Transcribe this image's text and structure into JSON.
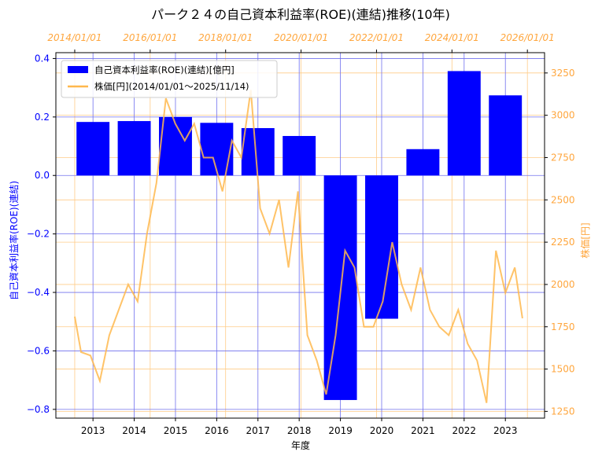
{
  "chart_data": {
    "type": "bar",
    "title": "パーク２４の自己資本利益率(ROE)(連結)推移(10年)",
    "xlabel": "年度",
    "ylabel": "自己資本利益率(ROE)(連結)",
    "ylabel_right": "株価[円]",
    "categories": [
      "2013",
      "2014",
      "2015",
      "2016",
      "2017",
      "2018",
      "2019",
      "2020",
      "2021",
      "2022",
      "2023"
    ],
    "series": [
      {
        "name": "自己資本利益率(ROE)(連結)[億円]",
        "type": "bar",
        "axis": "left",
        "color": "#0000ff",
        "values": [
          0.183,
          0.186,
          0.2,
          0.18,
          0.162,
          0.135,
          -0.768,
          -0.49,
          0.09,
          0.357,
          0.274
        ]
      },
      {
        "name": "株価[円](2014/01/01～2025/11/14)",
        "type": "line",
        "axis": "right",
        "color": "#ffb84d",
        "points": [
          [
            "2014/01/01",
            1810
          ],
          [
            "2014/03/01",
            1600
          ],
          [
            "2014/06/01",
            1580
          ],
          [
            "2014/09/01",
            1430
          ],
          [
            "2014/12/01",
            1700
          ],
          [
            "2015/03/01",
            1850
          ],
          [
            "2015/06/01",
            2000
          ],
          [
            "2015/09/01",
            1900
          ],
          [
            "2015/12/01",
            2300
          ],
          [
            "2016/03/01",
            2600
          ],
          [
            "2016/06/01",
            3100
          ],
          [
            "2016/09/01",
            2950
          ],
          [
            "2016/12/01",
            2850
          ],
          [
            "2017/03/01",
            2950
          ],
          [
            "2017/06/01",
            2750
          ],
          [
            "2017/09/01",
            2750
          ],
          [
            "2017/12/01",
            2550
          ],
          [
            "2018/03/01",
            2850
          ],
          [
            "2018/06/01",
            2750
          ],
          [
            "2018/09/01",
            3150
          ],
          [
            "2018/12/01",
            2450
          ],
          [
            "2019/03/01",
            2300
          ],
          [
            "2019/06/01",
            2500
          ],
          [
            "2019/09/01",
            2100
          ],
          [
            "2019/12/01",
            2550
          ],
          [
            "2020/03/01",
            1700
          ],
          [
            "2020/06/01",
            1550
          ],
          [
            "2020/09/01",
            1350
          ],
          [
            "2020/12/01",
            1700
          ],
          [
            "2021/03/01",
            2200
          ],
          [
            "2021/06/01",
            2100
          ],
          [
            "2021/09/01",
            1750
          ],
          [
            "2021/12/01",
            1750
          ],
          [
            "2022/03/01",
            1900
          ],
          [
            "2022/06/01",
            2250
          ],
          [
            "2022/09/01",
            2000
          ],
          [
            "2022/12/01",
            1850
          ],
          [
            "2023/03/01",
            2100
          ],
          [
            "2023/06/01",
            1850
          ],
          [
            "2023/09/01",
            1750
          ],
          [
            "2023/12/01",
            1700
          ],
          [
            "2024/03/01",
            1850
          ],
          [
            "2024/06/01",
            1650
          ],
          [
            "2024/09/01",
            1550
          ],
          [
            "2024/12/01",
            1300
          ],
          [
            "2025/03/01",
            2200
          ],
          [
            "2025/06/01",
            1950
          ],
          [
            "2025/09/01",
            2100
          ],
          [
            "2025/11/14",
            1800
          ]
        ]
      }
    ],
    "y_left": {
      "lim": [
        -0.83,
        0.42
      ],
      "ticks": [
        0.4,
        0.2,
        0.0,
        -0.2,
        -0.4,
        -0.6,
        -0.8
      ],
      "tick_labels": [
        "0.4",
        "0.2",
        "0.0",
        "−0.2",
        "−0.4",
        "−0.6",
        "−0.8"
      ],
      "color": "#0000ff"
    },
    "y_right": {
      "lim": [
        1210,
        3370
      ],
      "ticks": [
        3250,
        3000,
        2750,
        2500,
        2250,
        2000,
        1750,
        1500,
        1250
      ],
      "tick_labels": [
        "3250",
        "3000",
        "2750",
        "2500",
        "2250",
        "2000",
        "1750",
        "1500",
        "1250"
      ],
      "color": "#ffa63d"
    },
    "x_bottom": {
      "lim": [
        2012.1,
        2023.95
      ]
    },
    "x_top": {
      "ticks": [
        "2014/01/01",
        "2016/01/01",
        "2018/01/01",
        "2020/01/01",
        "2022/01/01",
        "2024/01/01",
        "2026/01/01"
      ],
      "tick_labels": [
        "2014/01/01",
        "2016/01/01",
        "2018/01/01",
        "2020/01/01",
        "2022/01/01",
        "2024/01/01",
        "2026/01/01"
      ],
      "date_lim": [
        "2013/07/01",
        "2026/06/15"
      ],
      "color": "#ffa63d"
    },
    "grid": true,
    "legend": "top-left"
  }
}
